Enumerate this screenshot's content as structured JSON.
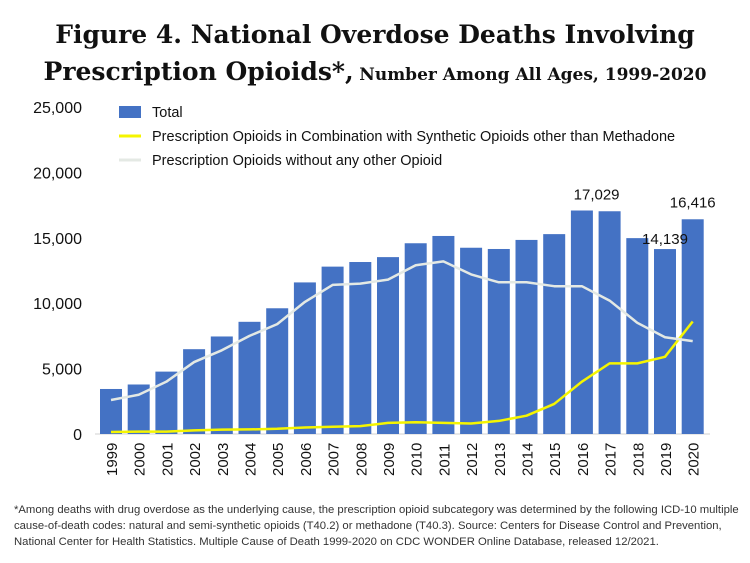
{
  "chart_data": {
    "type": "bar",
    "title": "Figure 4. National Overdose Deaths Involving Prescription Opioids*,",
    "subtitle": "Number Among All Ages, 1999-2020",
    "xlabel": "",
    "ylabel": "",
    "ylim": [
      0,
      25000
    ],
    "yticks": [
      "0",
      "5,000",
      "10,000",
      "15,000",
      "20,000",
      "25,000"
    ],
    "grid": false,
    "legend_position": "top",
    "categories": [
      "1999",
      "2000",
      "2001",
      "2002",
      "2003",
      "2004",
      "2005",
      "2006",
      "2007",
      "2008",
      "2009",
      "2010",
      "2011",
      "2012",
      "2013",
      "2014",
      "2015",
      "2016",
      "2017",
      "2018",
      "2019",
      "2020"
    ],
    "series": [
      {
        "name": "Total",
        "type": "bar",
        "color": "#4472C4",
        "values": [
          3442,
          3785,
          4770,
          6484,
          7456,
          8577,
          9612,
          11589,
          12796,
          13149,
          13523,
          14583,
          15140,
          14240,
          14145,
          14838,
          15281,
          17087,
          17029,
          14975,
          14139,
          16416
        ]
      },
      {
        "name": "Prescription Opioids in Combination with Synthetic Opioids other than Methadone",
        "type": "line",
        "color": "#F5F500",
        "values": [
          150,
          180,
          180,
          280,
          330,
          350,
          400,
          500,
          550,
          600,
          850,
          900,
          850,
          800,
          1000,
          1400,
          2300,
          4000,
          5400,
          5400,
          5900,
          8600
        ]
      },
      {
        "name": "Prescription Opioids without any other Opioid",
        "type": "line",
        "color": "#E4E9E4",
        "values": [
          2600,
          3000,
          4000,
          5500,
          6400,
          7500,
          8400,
          10100,
          11400,
          11500,
          11800,
          12900,
          13200,
          12200,
          11600,
          11600,
          11300,
          11300,
          10200,
          8500,
          7400,
          7100
        ]
      }
    ],
    "data_labels": [
      {
        "category": "2017",
        "text": "17,029"
      },
      {
        "category": "2019",
        "text": "14,139"
      },
      {
        "category": "2020",
        "text": "16,416"
      }
    ]
  },
  "footnote": "*Among deaths with drug overdose as the underlying cause, the prescription opioid subcategory was determined by the following ICD-10 multiple cause-of-death codes: natural and semi-synthetic opioids (T40.2) or methadone (T40.3). Source: Centers for Disease Control and Prevention, National Center for Health Statistics. Multiple Cause of Death 1999-2020 on CDC WONDER Online Database, released 12/2021."
}
